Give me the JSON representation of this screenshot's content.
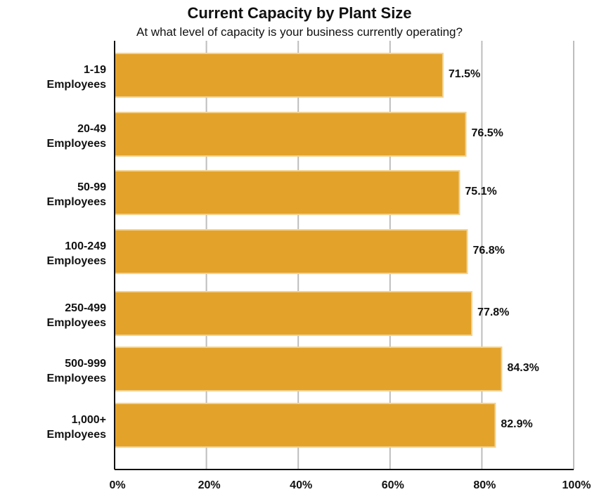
{
  "chart_data": {
    "type": "bar",
    "orientation": "horizontal",
    "title": "Current Capacity by Plant Size",
    "subtitle": "At what level of capacity is your business currently operating?",
    "categories": [
      [
        "1-19",
        "Employees"
      ],
      [
        "20-49",
        "Employees"
      ],
      [
        "50-99",
        "Employees"
      ],
      [
        "100-249",
        "Employees"
      ],
      [
        "250-499",
        "Employees"
      ],
      [
        "500-999",
        "Employees"
      ],
      [
        "1,000+",
        "Employees"
      ]
    ],
    "values": [
      71.5,
      76.5,
      75.1,
      76.8,
      77.8,
      84.3,
      82.9
    ],
    "value_labels": [
      "71.5%",
      "76.5%",
      "75.1%",
      "76.8%",
      "77.8%",
      "84.3%",
      "82.9%"
    ],
    "xlim": [
      0,
      100
    ],
    "x_ticks": [
      "0%",
      "20%",
      "40%",
      "60%",
      "80%",
      "100%"
    ],
    "grid": true,
    "bar_color": "#e3a229",
    "bar_edge_color": "#f3d28f"
  }
}
